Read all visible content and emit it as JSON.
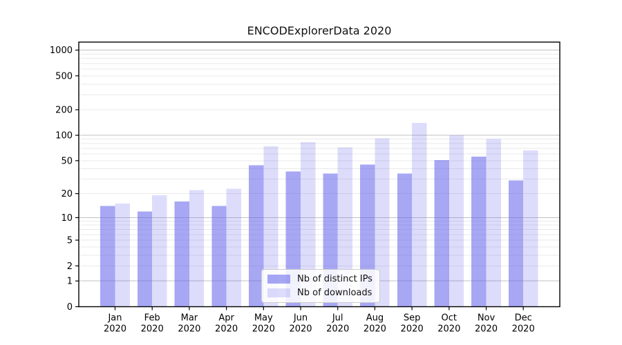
{
  "chart_data": {
    "type": "bar",
    "title": "ENCODExplorerData 2020",
    "categories": [
      "Jan 2020",
      "Feb 2020",
      "Mar 2020",
      "Apr 2020",
      "May 2020",
      "Jun 2020",
      "Jul 2020",
      "Aug 2020",
      "Sep 2020",
      "Oct 2020",
      "Nov 2020",
      "Dec 2020"
    ],
    "series": [
      {
        "name": "Nb of distinct IPs",
        "values": [
          14,
          12,
          16,
          14,
          44,
          37,
          35,
          45,
          35,
          51,
          56,
          29
        ],
        "color": "rgba(98,98,235,0.56)"
      },
      {
        "name": "Nb of downloads",
        "values": [
          15,
          19,
          22,
          23,
          74,
          83,
          72,
          92,
          140,
          100,
          90,
          66
        ],
        "color": "rgba(98,98,235,0.22)"
      }
    ],
    "yscale": "log1p",
    "yticks": [
      0,
      1,
      2,
      5,
      10,
      20,
      50,
      100,
      200,
      500,
      1000
    ],
    "major_grid_at": [
      1,
      10,
      100,
      1000
    ],
    "ylim": [
      0,
      1200
    ],
    "xlabel": "",
    "ylabel": "",
    "grid": true,
    "legend_position": "lower center inside",
    "colors": {
      "major_grid": "#c0c0c0",
      "minor_grid": "#e9e9e9",
      "axis": "#000000",
      "bar_base": "#6262eb"
    }
  }
}
